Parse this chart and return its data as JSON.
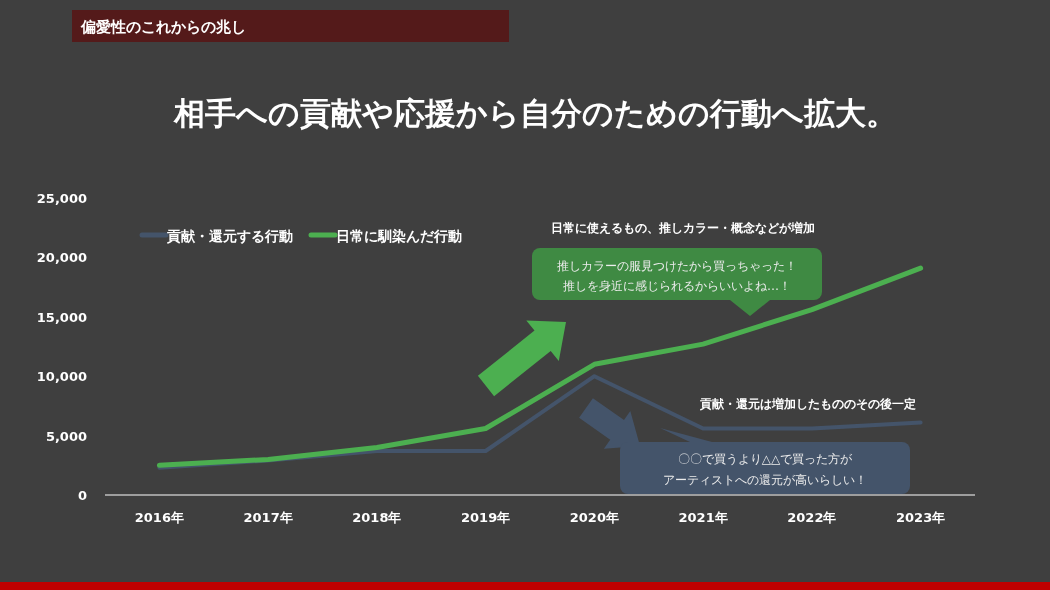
{
  "chart_data": {
    "type": "line",
    "title": "相手への貢献や応援から自分のための行動へ拡大。",
    "subtitle": "偏愛性のこれからの兆し",
    "categories": [
      "2016年",
      "2017年",
      "2018年",
      "2019年",
      "2020年",
      "2021年",
      "2022年",
      "2023年"
    ],
    "series": [
      {
        "name": "貢献・還元する行動",
        "color": "#44546a",
        "values": [
          2300,
          2900,
          3700,
          3700,
          10000,
          5600,
          5600,
          6100
        ]
      },
      {
        "name": "日常に馴染んだ行動",
        "color": "#4caf50",
        "values": [
          2500,
          3000,
          4000,
          5600,
          11000,
          12700,
          15600,
          19100
        ]
      }
    ],
    "ylim": [
      0,
      25000
    ],
    "yticks": [
      {
        "value": 0,
        "label": "0"
      },
      {
        "value": 5000,
        "label": "5,000"
      },
      {
        "value": 10000,
        "label": "10,000"
      },
      {
        "value": 15000,
        "label": "15,000"
      },
      {
        "value": 20000,
        "label": "20,000"
      },
      {
        "value": 25000,
        "label": "25,000"
      }
    ],
    "grid": false,
    "legend": "top left",
    "marker": "none",
    "line_style": "solid",
    "annotations": [
      "日常に使えるもの、推しカラー・概念などが増加",
      "推しカラーの服見つけたから買っちゃった！",
      "推しを身近に感じられるからいいよね…！",
      "貢献・還元は増加したもののその後一定",
      "〇〇で買うより△△で買った方が",
      "アーティストへの還元が高いらしい！"
    ]
  }
}
